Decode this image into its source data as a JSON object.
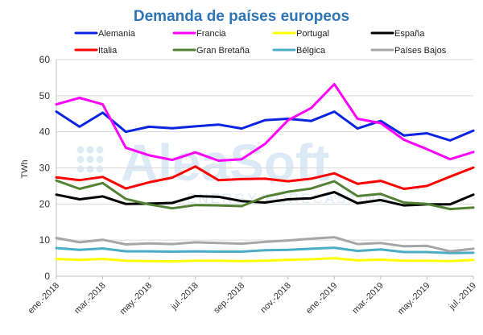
{
  "chart_data": {
    "type": "line",
    "title": "Demanda de países europeos",
    "ylabel": "TWh",
    "xlabel": "",
    "ylim": [
      0,
      60
    ],
    "yticks": [
      0,
      10,
      20,
      30,
      40,
      50,
      60
    ],
    "grid": true,
    "legend_position": "top",
    "x": [
      "ene.-2018",
      "feb.-2018",
      "mar.-2018",
      "abr.-2018",
      "may.-2018",
      "jun.-2018",
      "jul.-2018",
      "ago.-2018",
      "sep.-2018",
      "oct.-2018",
      "nov.-2018",
      "dic.-2018",
      "ene.-2019",
      "feb.-2019",
      "mar.-2019",
      "abr.-2019",
      "may.-2019",
      "jun.-2019",
      "jul.-2019"
    ],
    "x_tick_labels": [
      "ene.-2018",
      "mar.-2018",
      "may.-2018",
      "jul.-2018",
      "sep.-2018",
      "nov.-2018",
      "ene.-2019",
      "mar.-2019",
      "may.-2019",
      "jul.-2019"
    ],
    "series": [
      {
        "name": "Alemania",
        "color": "#0b24e0",
        "values": [
          45.6,
          41.4,
          45.3,
          40.0,
          41.4,
          41.0,
          41.5,
          42.0,
          40.9,
          43.2,
          43.6,
          43.0,
          45.6,
          40.9,
          43.0,
          39.0,
          39.6,
          37.6,
          40.3
        ]
      },
      {
        "name": "Francia",
        "color": "#ff00ff",
        "values": [
          47.6,
          49.4,
          47.6,
          35.6,
          33.5,
          32.2,
          34.3,
          32.0,
          32.4,
          36.6,
          43.2,
          46.6,
          53.2,
          43.6,
          42.4,
          37.8,
          35.2,
          32.4,
          34.4
        ]
      },
      {
        "name": "Portugal",
        "color": "#ffff00",
        "values": [
          4.8,
          4.5,
          4.8,
          4.3,
          4.2,
          4.1,
          4.3,
          4.3,
          4.2,
          4.3,
          4.5,
          4.7,
          5.0,
          4.4,
          4.6,
          4.3,
          4.3,
          4.2,
          4.5
        ]
      },
      {
        "name": "España",
        "color": "#000000",
        "values": [
          22.6,
          21.3,
          22.1,
          20.0,
          20.1,
          20.3,
          22.2,
          22.0,
          20.8,
          20.4,
          21.3,
          21.6,
          23.3,
          20.2,
          21.1,
          19.6,
          19.9,
          19.9,
          22.6
        ]
      },
      {
        "name": "Italia",
        "color": "#ff0000",
        "values": [
          27.4,
          26.6,
          27.5,
          24.3,
          26.0,
          27.3,
          30.4,
          26.6,
          26.9,
          27.0,
          26.3,
          27.0,
          28.5,
          25.6,
          26.4,
          24.2,
          25.0,
          27.6,
          30.1
        ]
      },
      {
        "name": "Gran Bretaña",
        "color": "#548235",
        "values": [
          26.5,
          24.2,
          25.8,
          21.4,
          19.9,
          18.8,
          19.7,
          19.6,
          19.4,
          22.0,
          23.4,
          24.3,
          26.3,
          22.2,
          22.8,
          20.4,
          20.0,
          18.6,
          19.0
        ]
      },
      {
        "name": "Bélgica",
        "color": "#4bacc6",
        "values": [
          7.8,
          7.3,
          7.7,
          6.9,
          6.9,
          6.8,
          6.9,
          6.8,
          6.8,
          7.2,
          7.3,
          7.6,
          7.9,
          7.0,
          7.4,
          6.7,
          6.7,
          6.4,
          6.5
        ]
      },
      {
        "name": "Países Bajos",
        "color": "#a6a6a6",
        "values": [
          10.6,
          9.4,
          10.1,
          8.8,
          9.1,
          8.9,
          9.4,
          9.2,
          9.0,
          9.5,
          9.9,
          10.4,
          10.8,
          8.9,
          9.2,
          8.3,
          8.4,
          6.9,
          7.6
        ]
      }
    ]
  }
}
